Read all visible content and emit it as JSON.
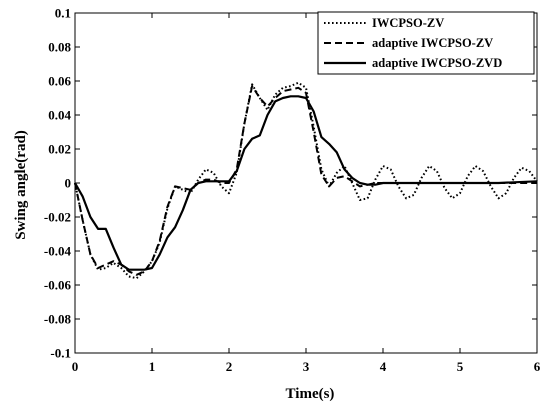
{
  "chart_data": {
    "type": "line",
    "title": "",
    "xlabel": "Time(s)",
    "ylabel": "Swing angle(rad)",
    "xlim": [
      0,
      6
    ],
    "ylim": [
      -0.1,
      0.1
    ],
    "xticks": [
      "0",
      "1",
      "2",
      "3",
      "4",
      "5",
      "6"
    ],
    "yticks": [
      "0.1",
      "0.08",
      "0.06",
      "0.04",
      "0.02",
      "0",
      "-0.02",
      "-0.04",
      "-0.06",
      "-0.08",
      "-0.1"
    ],
    "grid": false,
    "legend_position": "top-right",
    "series": [
      {
        "name": "IWCPSO-ZV",
        "style": "dotted",
        "color": "#000000",
        "x": [
          0,
          0.1,
          0.2,
          0.3,
          0.4,
          0.5,
          0.6,
          0.7,
          0.8,
          0.9,
          1.0,
          1.1,
          1.2,
          1.3,
          1.4,
          1.5,
          1.6,
          1.7,
          1.8,
          1.9,
          2.0,
          2.1,
          2.2,
          2.3,
          2.4,
          2.5,
          2.6,
          2.7,
          2.8,
          2.9,
          3.0,
          3.1,
          3.2,
          3.3,
          3.4,
          3.5,
          3.6,
          3.7,
          3.8,
          3.9,
          4.0,
          4.1,
          4.2,
          4.3,
          4.4,
          4.5,
          4.6,
          4.7,
          4.8,
          4.9,
          5.0,
          5.1,
          5.2,
          5.3,
          5.4,
          5.5,
          5.6,
          5.7,
          5.8,
          5.9,
          6.0
        ],
        "y": [
          0,
          -0.022,
          -0.042,
          -0.051,
          -0.05,
          -0.047,
          -0.05,
          -0.055,
          -0.056,
          -0.052,
          -0.046,
          -0.035,
          -0.015,
          -0.002,
          -0.004,
          -0.006,
          0.002,
          0.008,
          0.006,
          -0.002,
          -0.006,
          0.006,
          0.035,
          0.058,
          0.05,
          0.043,
          0.052,
          0.056,
          0.057,
          0.059,
          0.056,
          0.033,
          0.008,
          -0.002,
          0.006,
          0.01,
          0.0,
          -0.01,
          -0.009,
          0.002,
          0.01,
          0.008,
          -0.002,
          -0.009,
          -0.007,
          0.003,
          0.01,
          0.007,
          -0.003,
          -0.009,
          -0.006,
          0.004,
          0.01,
          0.007,
          -0.002,
          -0.009,
          -0.006,
          0.003,
          0.009,
          0.007,
          0.001
        ]
      },
      {
        "name": "adaptive IWCPSO-ZV",
        "style": "dashed",
        "color": "#000000",
        "x": [
          0,
          0.1,
          0.2,
          0.3,
          0.4,
          0.5,
          0.6,
          0.7,
          0.8,
          0.9,
          1.0,
          1.1,
          1.2,
          1.3,
          1.4,
          1.5,
          1.6,
          1.7,
          1.8,
          1.9,
          2.0,
          2.1,
          2.2,
          2.3,
          2.4,
          2.5,
          2.6,
          2.7,
          2.8,
          2.9,
          3.0,
          3.1,
          3.2,
          3.3,
          3.4,
          3.5,
          3.6,
          3.7,
          3.8,
          3.9,
          4.0,
          4.5,
          5.0,
          5.5,
          6.0
        ],
        "y": [
          0,
          -0.022,
          -0.042,
          -0.05,
          -0.048,
          -0.046,
          -0.048,
          -0.052,
          -0.054,
          -0.052,
          -0.046,
          -0.034,
          -0.014,
          -0.002,
          -0.003,
          -0.004,
          0.0,
          0.002,
          0.002,
          0.0,
          0.0,
          0.008,
          0.035,
          0.057,
          0.05,
          0.045,
          0.05,
          0.054,
          0.055,
          0.056,
          0.053,
          0.03,
          0.005,
          -0.002,
          0.003,
          0.004,
          0.001,
          -0.002,
          -0.001,
          0.0,
          0.0,
          0.0,
          0.0,
          0.0,
          0.0
        ]
      },
      {
        "name": "adaptive IWCPSO-ZVD",
        "style": "solid",
        "color": "#000000",
        "x": [
          0,
          0.1,
          0.2,
          0.3,
          0.4,
          0.5,
          0.6,
          0.7,
          0.8,
          0.9,
          1.0,
          1.1,
          1.2,
          1.3,
          1.4,
          1.5,
          1.6,
          1.7,
          1.8,
          1.9,
          2.0,
          2.1,
          2.2,
          2.3,
          2.4,
          2.5,
          2.6,
          2.7,
          2.8,
          2.9,
          3.0,
          3.1,
          3.2,
          3.3,
          3.4,
          3.5,
          3.6,
          3.7,
          3.8,
          3.9,
          4.0,
          4.5,
          5.0,
          5.5,
          6.0
        ],
        "y": [
          0,
          -0.008,
          -0.02,
          -0.027,
          -0.027,
          -0.038,
          -0.048,
          -0.051,
          -0.051,
          -0.051,
          -0.05,
          -0.042,
          -0.032,
          -0.026,
          -0.016,
          -0.004,
          0.0,
          0.001,
          0.001,
          0.001,
          0.001,
          0.007,
          0.02,
          0.026,
          0.028,
          0.04,
          0.048,
          0.05,
          0.051,
          0.051,
          0.05,
          0.042,
          0.027,
          0.023,
          0.018,
          0.008,
          0.003,
          0.0,
          -0.001,
          -0.001,
          0.0,
          0.0,
          0.0,
          0.0,
          0.001
        ]
      }
    ]
  }
}
